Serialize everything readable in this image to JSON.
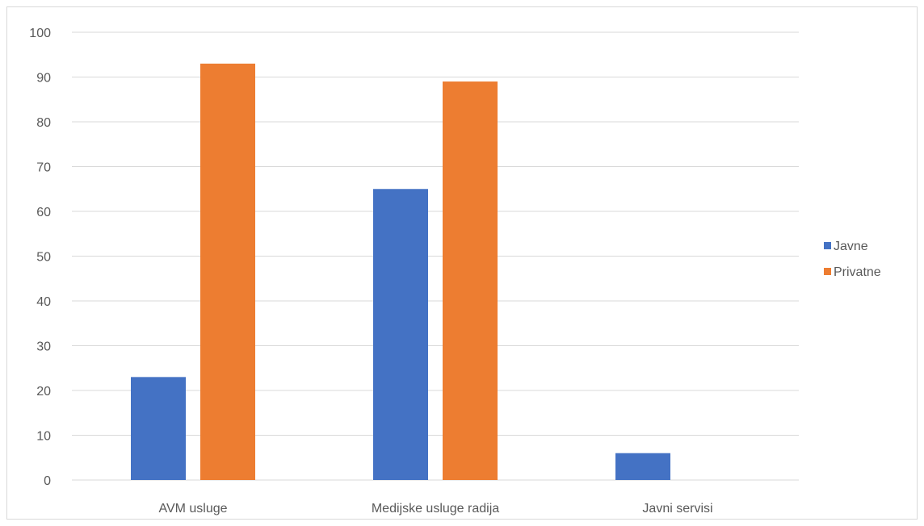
{
  "chart_data": {
    "type": "bar",
    "title": "",
    "xlabel": "",
    "ylabel": "",
    "categories": [
      "AVM usluge",
      "Medijske usluge radija",
      "Javni servisi"
    ],
    "series": [
      {
        "name": "Javne",
        "color": "#4472c4",
        "values": [
          23,
          65,
          6
        ]
      },
      {
        "name": "Privatne",
        "color": "#ed7d31",
        "values": [
          93,
          89,
          0
        ]
      }
    ],
    "ylim": [
      0,
      100
    ],
    "yticks": [
      0,
      10,
      20,
      30,
      40,
      50,
      60,
      70,
      80,
      90,
      100
    ],
    "grid": true,
    "legend_position": "right"
  }
}
